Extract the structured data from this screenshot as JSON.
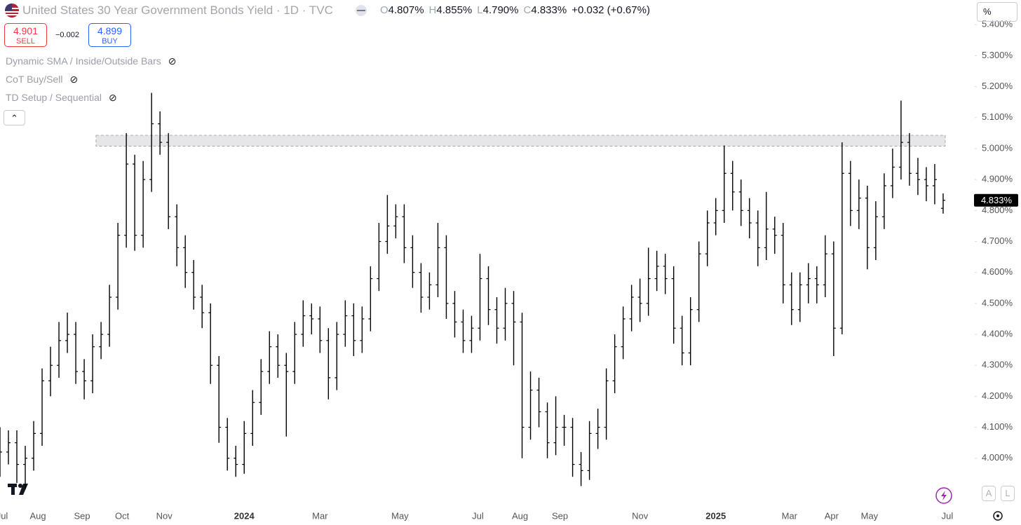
{
  "header": {
    "title": "United States 30 Year Government Bonds Yield",
    "interval": "1D",
    "source": "TVC",
    "ohlc": [
      {
        "key": "O",
        "text": "4.807%"
      },
      {
        "key": "H",
        "text": "4.855%"
      },
      {
        "key": "L",
        "text": "4.790%"
      },
      {
        "key": "C",
        "text": "4.833%"
      }
    ],
    "change": "+0.032 (+0.67%)",
    "sell": {
      "price": "4.901",
      "label": "SELL"
    },
    "buy": {
      "price": "4.899",
      "label": "BUY"
    },
    "spread": "−0.002",
    "indicators": [
      "Dynamic SMA / Inside/Outside Bars",
      "CoT Buy/Sell",
      "TD Setup / Sequential"
    ],
    "unit": "%",
    "scale_buttons": [
      "A",
      "L"
    ]
  },
  "chart_data": {
    "type": "ohlc",
    "color": "#000000",
    "x": [
      0,
      4,
      8,
      12,
      16,
      20,
      24,
      28,
      32,
      36,
      40,
      44,
      48,
      52,
      56,
      60,
      64,
      68,
      72,
      76,
      80,
      84,
      88,
      92,
      96,
      100,
      104,
      108,
      112,
      116,
      120,
      124,
      128,
      132,
      136,
      140,
      144,
      148,
      152,
      156,
      160,
      164,
      168,
      172,
      176,
      180,
      184,
      188,
      192,
      196,
      200,
      204,
      208,
      212,
      216,
      220,
      224,
      228,
      232,
      236,
      240,
      244,
      248,
      252,
      256,
      260,
      264,
      268,
      272,
      276,
      280,
      284,
      288,
      292,
      296,
      300,
      304,
      308,
      312,
      316,
      320,
      324,
      328,
      332,
      336,
      340,
      344,
      348,
      352,
      356,
      360,
      364,
      368,
      372,
      376,
      380,
      384,
      388,
      392,
      396,
      400,
      404,
      408,
      412,
      416,
      420,
      424,
      428,
      432,
      436,
      440,
      444,
      448
    ],
    "open": [
      4.0,
      4.02,
      4.05,
      3.98,
      4.0,
      4.08,
      4.25,
      4.3,
      4.38,
      4.4,
      4.28,
      4.25,
      4.36,
      4.4,
      4.52,
      4.72,
      4.95,
      4.72,
      4.9,
      5.08,
      5.02,
      4.78,
      4.68,
      4.6,
      4.52,
      4.47,
      4.3,
      4.1,
      4.0,
      3.98,
      4.08,
      4.18,
      4.28,
      4.36,
      4.3,
      4.28,
      4.4,
      4.46,
      4.45,
      4.38,
      4.26,
      4.4,
      4.46,
      4.38,
      4.45,
      4.58,
      4.7,
      4.75,
      4.78,
      4.68,
      4.6,
      4.52,
      4.56,
      4.68,
      4.5,
      4.44,
      4.38,
      4.42,
      4.58,
      4.48,
      4.42,
      4.5,
      4.44,
      4.1,
      4.22,
      4.15,
      4.05,
      4.1,
      4.1,
      3.98,
      3.96,
      4.08,
      4.1,
      4.25,
      4.36,
      4.45,
      4.52,
      4.5,
      4.58,
      4.62,
      4.58,
      4.42,
      4.34,
      4.48,
      4.66,
      4.76,
      4.8,
      4.92,
      4.86,
      4.8,
      4.76,
      4.68,
      4.74,
      4.72,
      4.56,
      4.48,
      4.56,
      4.58,
      4.56,
      4.66,
      4.42,
      4.92,
      4.8,
      4.84,
      4.68,
      4.78,
      4.88,
      4.94,
      5.02,
      4.92,
      4.9,
      4.88,
      4.807
    ],
    "high": [
      4.1,
      4.09,
      4.09,
      4.04,
      4.12,
      4.29,
      4.36,
      4.44,
      4.47,
      4.44,
      4.32,
      4.4,
      4.44,
      4.56,
      4.76,
      5.05,
      4.98,
      4.96,
      5.18,
      5.12,
      5.05,
      4.82,
      4.72,
      4.64,
      4.56,
      4.5,
      4.33,
      4.13,
      4.04,
      4.12,
      4.22,
      4.32,
      4.41,
      4.4,
      4.34,
      4.44,
      4.51,
      4.5,
      4.49,
      4.42,
      4.44,
      4.51,
      4.5,
      4.49,
      4.62,
      4.76,
      4.85,
      4.82,
      4.82,
      4.72,
      4.63,
      4.6,
      4.76,
      4.72,
      4.54,
      4.48,
      4.46,
      4.66,
      4.62,
      4.52,
      4.55,
      4.54,
      4.47,
      4.28,
      4.26,
      4.18,
      4.2,
      4.14,
      4.13,
      4.02,
      4.12,
      4.16,
      4.29,
      4.4,
      4.49,
      4.56,
      4.58,
      4.68,
      4.67,
      4.66,
      4.62,
      4.46,
      4.52,
      4.7,
      4.8,
      4.84,
      5.01,
      4.96,
      4.9,
      4.84,
      4.8,
      4.86,
      4.78,
      4.76,
      4.6,
      4.6,
      4.63,
      4.62,
      4.72,
      4.7,
      5.02,
      4.96,
      4.9,
      4.88,
      4.83,
      4.92,
      5.0,
      5.155,
      5.05,
      4.97,
      4.94,
      4.95,
      4.855
    ],
    "low": [
      3.94,
      3.98,
      3.92,
      3.9,
      3.96,
      4.04,
      4.2,
      4.26,
      4.34,
      4.24,
      4.19,
      4.21,
      4.32,
      4.36,
      4.48,
      4.68,
      4.67,
      4.68,
      4.86,
      4.98,
      4.74,
      4.62,
      4.55,
      4.48,
      4.42,
      4.24,
      4.05,
      3.96,
      3.94,
      3.95,
      4.04,
      4.14,
      4.24,
      4.26,
      4.07,
      4.24,
      4.36,
      4.4,
      4.34,
      4.19,
      4.22,
      4.36,
      4.33,
      4.34,
      4.41,
      4.54,
      4.66,
      4.71,
      4.63,
      4.55,
      4.47,
      4.48,
      4.52,
      4.45,
      4.39,
      4.34,
      4.34,
      4.38,
      4.43,
      4.37,
      4.38,
      4.3,
      4.0,
      4.06,
      4.1,
      4.0,
      4.01,
      4.04,
      3.94,
      3.91,
      3.93,
      4.03,
      4.06,
      4.21,
      4.32,
      4.41,
      4.44,
      4.46,
      4.54,
      4.53,
      4.37,
      4.3,
      4.3,
      4.44,
      4.62,
      4.72,
      4.76,
      4.8,
      4.75,
      4.71,
      4.62,
      4.64,
      4.66,
      4.5,
      4.43,
      4.44,
      4.5,
      4.5,
      4.52,
      4.33,
      4.4,
      4.75,
      4.74,
      4.61,
      4.64,
      4.74,
      4.84,
      4.9,
      4.88,
      4.85,
      4.83,
      4.82,
      4.79
    ],
    "close": [
      4.02,
      4.05,
      3.98,
      4.0,
      4.08,
      4.25,
      4.3,
      4.38,
      4.4,
      4.28,
      4.25,
      4.36,
      4.4,
      4.52,
      4.72,
      4.95,
      4.72,
      4.9,
      5.08,
      5.02,
      4.78,
      4.68,
      4.6,
      4.52,
      4.47,
      4.3,
      4.1,
      4.0,
      3.98,
      4.08,
      4.18,
      4.28,
      4.36,
      4.3,
      4.28,
      4.4,
      4.46,
      4.45,
      4.38,
      4.26,
      4.4,
      4.46,
      4.38,
      4.45,
      4.58,
      4.7,
      4.75,
      4.78,
      4.68,
      4.6,
      4.52,
      4.56,
      4.68,
      4.5,
      4.44,
      4.38,
      4.42,
      4.58,
      4.48,
      4.42,
      4.5,
      4.44,
      4.1,
      4.22,
      4.15,
      4.05,
      4.1,
      4.1,
      3.98,
      3.96,
      4.08,
      4.1,
      4.25,
      4.36,
      4.45,
      4.52,
      4.5,
      4.58,
      4.62,
      4.58,
      4.42,
      4.34,
      4.48,
      4.66,
      4.76,
      4.8,
      4.92,
      4.86,
      4.8,
      4.76,
      4.68,
      4.74,
      4.72,
      4.56,
      4.48,
      4.56,
      4.58,
      4.56,
      4.66,
      4.42,
      4.92,
      4.8,
      4.84,
      4.68,
      4.78,
      4.88,
      4.94,
      5.02,
      4.92,
      4.9,
      4.88,
      4.9,
      4.833
    ],
    "xlim": [
      0,
      463
    ],
    "xticks": [
      {
        "value": 1,
        "label": "Jul"
      },
      {
        "value": 18,
        "label": "Aug"
      },
      {
        "value": 39,
        "label": "Sep"
      },
      {
        "value": 58,
        "label": "Oct"
      },
      {
        "value": 78,
        "label": "Nov"
      },
      {
        "value": 116,
        "label": "2024"
      },
      {
        "value": 152,
        "label": "Mar"
      },
      {
        "value": 190,
        "label": "May"
      },
      {
        "value": 227,
        "label": "Jul"
      },
      {
        "value": 247,
        "label": "Aug"
      },
      {
        "value": 266,
        "label": "Sep"
      },
      {
        "value": 304,
        "label": "Nov"
      },
      {
        "value": 340,
        "label": "2025"
      },
      {
        "value": 375,
        "label": "Mar"
      },
      {
        "value": 395,
        "label": "Apr"
      },
      {
        "value": 413,
        "label": "May"
      },
      {
        "value": 450,
        "label": "Jul"
      }
    ],
    "ylim": [
      3.85,
      5.43
    ],
    "yticks": [
      {
        "value": 4.0,
        "label": "4.000%"
      },
      {
        "value": 4.1,
        "label": "4.100%"
      },
      {
        "value": 4.2,
        "label": "4.200%"
      },
      {
        "value": 4.3,
        "label": "4.300%"
      },
      {
        "value": 4.4,
        "label": "4.400%"
      },
      {
        "value": 4.5,
        "label": "4.500%"
      },
      {
        "value": 4.6,
        "label": "4.600%"
      },
      {
        "value": 4.7,
        "label": "4.700%"
      },
      {
        "value": 4.8,
        "label": "4.800%"
      },
      {
        "value": 4.9,
        "label": "4.900%"
      },
      {
        "value": 5.0,
        "label": "5.000%"
      },
      {
        "value": 5.1,
        "label": "5.100%"
      },
      {
        "value": 5.2,
        "label": "5.200%"
      },
      {
        "value": 5.3,
        "label": "5.300%"
      },
      {
        "value": 5.4,
        "label": "5.400%"
      }
    ],
    "zone": {
      "from": 5.008,
      "to": 5.043,
      "x_from": 45.6,
      "x_to": 449
    },
    "last_price": {
      "value": 4.833,
      "label": "4.833%"
    }
  }
}
